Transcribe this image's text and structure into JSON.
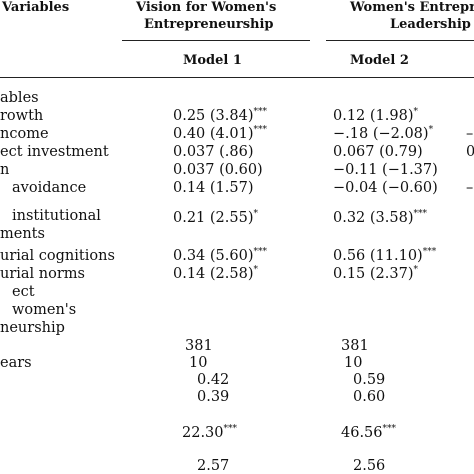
{
  "header": {
    "variables_label": "Variables",
    "group1_line1": "Vision for Women's",
    "group1_line2": "Entrepreneurship",
    "group2_line1": "Women's Entrepr",
    "group2_line2": "Leadership",
    "model1": "Model 1",
    "model2": "Model 2"
  },
  "rows": [
    {
      "label": "ables",
      "m1": "",
      "m1_sig": "",
      "m2": "",
      "m2_sig": ""
    },
    {
      "label": "rowth",
      "m1": "0.25 (3.84)",
      "m1_sig": "***",
      "m2": "0.12 (1.98)",
      "m2_sig": "*"
    },
    {
      "label": "ncome",
      "m1": "0.40 (4.01)",
      "m1_sig": "***",
      "m2": "−.18 (−2.08)",
      "m2_sig": "*"
    },
    {
      "label": "ect investment",
      "m1": "0.037 (.86)",
      "m1_sig": "",
      "m2": "0.067 (0.79)",
      "m2_sig": ""
    },
    {
      "label": "n",
      "m1": "0.037 (0.60)",
      "m1_sig": "",
      "m2": "−0.11 (−1.37)",
      "m2_sig": ""
    },
    {
      "label": "avoidance",
      "m1": "0.14 (1.57)",
      "m1_sig": "",
      "m2": "−0.04 (−0.60)",
      "m2_sig": ""
    },
    {
      "label": "institutional",
      "m1": "0.21 (2.55)",
      "m1_sig": "*",
      "m2": "0.32 (3.58)",
      "m2_sig": "***"
    },
    {
      "label": "ments",
      "m1": "",
      "m1_sig": "",
      "m2": "",
      "m2_sig": ""
    },
    {
      "label": "urial cognitions",
      "m1": "0.34 (5.60)",
      "m1_sig": "***",
      "m2": "0.56 (11.10)",
      "m2_sig": "***"
    },
    {
      "label": "urial norms",
      "m1": "0.14 (2.58)",
      "m1_sig": "*",
      "m2": "0.15 (2.37)",
      "m2_sig": "*"
    },
    {
      "label": "ect",
      "m1": "",
      "m1_sig": "",
      "m2": "",
      "m2_sig": ""
    },
    {
      "label": "women's",
      "m1": "",
      "m1_sig": "",
      "m2": "",
      "m2_sig": ""
    },
    {
      "label": "neurship",
      "m1": "",
      "m1_sig": "",
      "m2": "",
      "m2_sig": ""
    },
    {
      "label": "",
      "m1": "381",
      "m1_sig": "",
      "m2": "381",
      "m2_sig": ""
    },
    {
      "label": "ears",
      "m1": "10",
      "m1_sig": "",
      "m2": "10",
      "m2_sig": ""
    },
    {
      "label": "",
      "m1": "0.42",
      "m1_sig": "",
      "m2": "0.59",
      "m2_sig": ""
    },
    {
      "label": "",
      "m1": "0.39",
      "m1_sig": "",
      "m2": "0.60",
      "m2_sig": ""
    },
    {
      "label": "",
      "m1": "22.30",
      "m1_sig": "***",
      "m2": "46.56",
      "m2_sig": "***"
    },
    {
      "label": "",
      "m1": "2.57",
      "m1_sig": "",
      "m2": "2.56",
      "m2_sig": ""
    }
  ],
  "right_edge_fragments": [
    "–",
    "0",
    "–"
  ]
}
